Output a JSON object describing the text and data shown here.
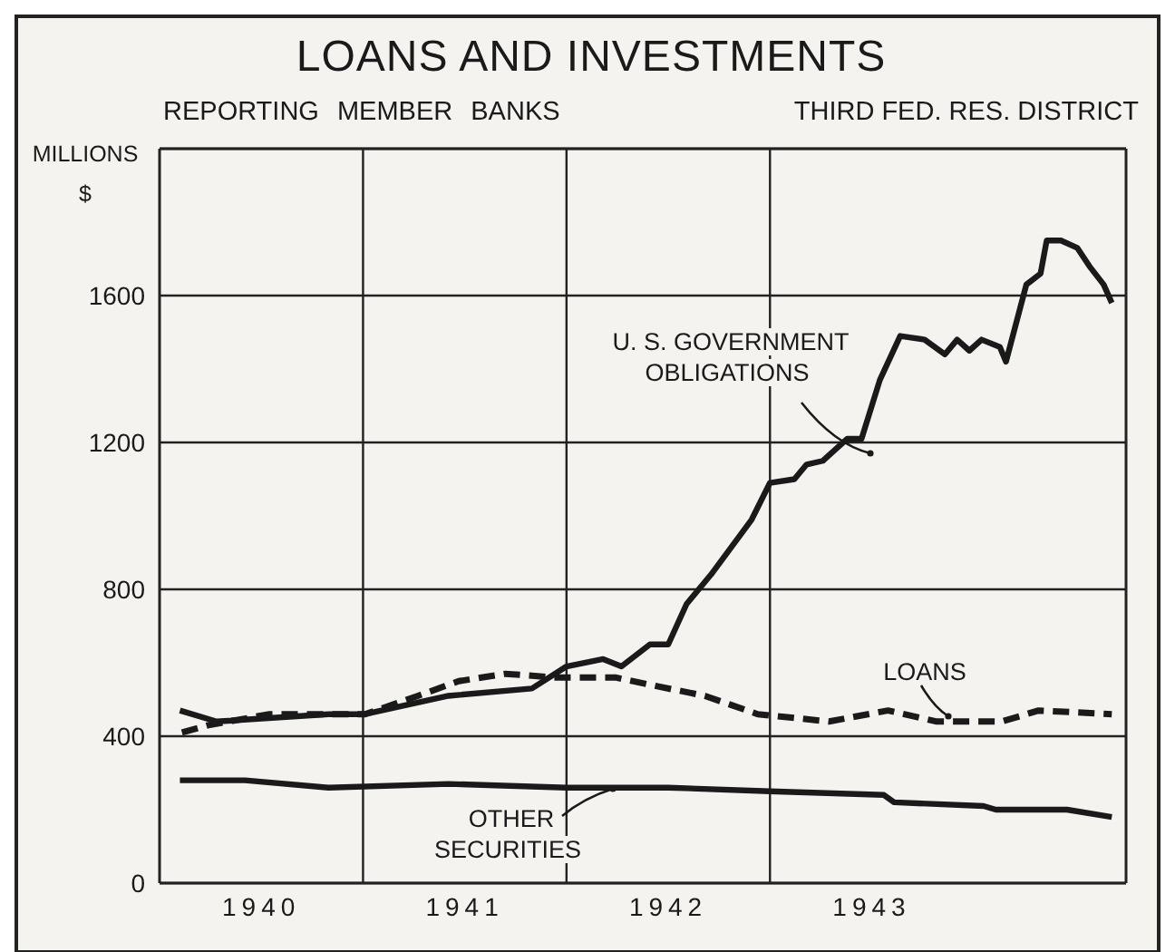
{
  "chart_data": {
    "type": "line",
    "title": "LOANS AND INVESTMENTS",
    "subtitle": "REPORTING MEMBER BANKS",
    "ylabel": "MILLIONS $",
    "annotations": [
      "THIRD FED. RES. DISTRICT"
    ],
    "xlim": [
      1940,
      1944.75
    ],
    "xticks": [
      {
        "value": 1940.5,
        "label": "1940"
      },
      {
        "value": 1941,
        "label": null
      },
      {
        "value": 1941.5,
        "label": "1941"
      },
      {
        "value": 1942,
        "label": null
      },
      {
        "value": 1942.5,
        "label": "1942"
      },
      {
        "value": 1943,
        "label": null
      },
      {
        "value": 1943.5,
        "label": "1943"
      }
    ],
    "ylim": [
      0,
      2000
    ],
    "yticks": [
      0,
      400,
      800,
      1200,
      1600
    ],
    "grid": true,
    "marker": "none",
    "series": [
      {
        "name": "U. S. GOVERNMENT OBLIGATIONS",
        "color": "#1a1a1a",
        "line_style": "solid",
        "x": [
          1940.1,
          1940.28,
          1940.83,
          1941.01,
          1941.42,
          1941.83,
          1942.0,
          1942.18,
          1942.27,
          1942.41,
          1942.5,
          1942.59,
          1942.71,
          1942.91,
          1943.0,
          1943.12,
          1943.18,
          1943.26,
          1943.38,
          1943.45,
          1943.54,
          1943.64,
          1943.76,
          1943.86,
          1943.92,
          1943.98,
          1944.04,
          1944.13,
          1944.16,
          1944.26,
          1944.33,
          1944.36,
          1944.43,
          1944.51,
          1944.57,
          1944.64,
          1944.68
        ],
        "values": [
          470,
          440,
          460,
          460,
          510,
          530,
          590,
          610,
          590,
          650,
          650,
          760,
          840,
          990,
          1090,
          1100,
          1140,
          1150,
          1210,
          1210,
          1370,
          1490,
          1480,
          1440,
          1480,
          1450,
          1480,
          1460,
          1420,
          1630,
          1660,
          1750,
          1750,
          1730,
          1680,
          1630,
          1580
        ]
      },
      {
        "name": "LOANS",
        "color": "#1a1a1a",
        "line_style": "dashed",
        "x": [
          1940.11,
          1940.24,
          1940.54,
          1941.01,
          1941.27,
          1941.47,
          1941.7,
          1941.94,
          1942.24,
          1942.41,
          1942.68,
          1942.94,
          1943.29,
          1943.58,
          1943.82,
          1944.14,
          1944.32,
          1944.68
        ],
        "values": [
          410,
          430,
          460,
          460,
          510,
          550,
          570,
          560,
          560,
          540,
          510,
          460,
          440,
          470,
          440,
          440,
          470,
          460
        ]
      },
      {
        "name": "OTHER SECURITIES",
        "color": "#1a1a1a",
        "line_style": "solid",
        "x": [
          1940.1,
          1940.42,
          1940.83,
          1941.42,
          1942.0,
          1942.5,
          1943.0,
          1943.56,
          1943.61,
          1944.05,
          1944.11,
          1944.46,
          1944.68
        ],
        "values": [
          280,
          280,
          260,
          270,
          260,
          260,
          250,
          240,
          220,
          210,
          200,
          200,
          180
        ]
      }
    ]
  }
}
